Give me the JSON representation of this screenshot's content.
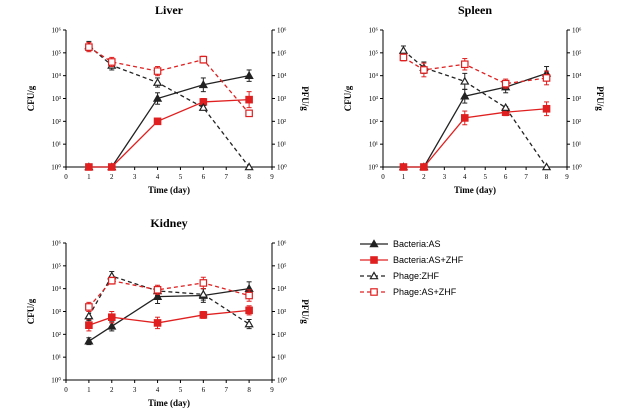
{
  "colors": {
    "bacteria_as": "#222222",
    "bacteria_as_zhf": "#e02020",
    "phage_zhf": "#222222",
    "phage_as_zhf": "#e02020"
  },
  "chart_data": [
    {
      "type": "line",
      "title": "Liver",
      "xlabel": "Time (day)",
      "ylabel": "CFU/g",
      "y2label": "PFU/g",
      "xlim": [
        0,
        9
      ],
      "ylim_log10": [
        0,
        6
      ],
      "x_ticks": [
        "0",
        "1",
        "2",
        "3",
        "4",
        "5",
        "6",
        "7",
        "8",
        "9"
      ],
      "y_ticks": [
        "10⁰",
        "10¹",
        "10²",
        "10³",
        "10⁴",
        "10⁵",
        "10⁶"
      ],
      "series": [
        {
          "name": "Bacteria:AS",
          "style": "bac_as",
          "x": [
            1,
            2,
            4,
            6,
            8
          ],
          "y_log10": [
            0,
            0,
            3.0,
            3.6,
            4.0
          ],
          "err": [
            0,
            0,
            0.25,
            0.3,
            0.25
          ]
        },
        {
          "name": "Bacteria:AS+ZHF",
          "style": "bac_zhf",
          "x": [
            1,
            2,
            4,
            6,
            8
          ],
          "y_log10": [
            0,
            0,
            2.0,
            2.85,
            2.95
          ],
          "err": [
            0,
            0,
            0.05,
            0.15,
            0.35
          ]
        },
        {
          "name": "Phage:ZHF",
          "style": "ph_zhf",
          "x": [
            1,
            2,
            4,
            6,
            8
          ],
          "y_log10": [
            5.3,
            4.45,
            3.7,
            2.6,
            0
          ],
          "err": [
            0.2,
            0.2,
            0.2,
            0.1,
            0
          ]
        },
        {
          "name": "Phage:AS+ZHF",
          "style": "ph_ashzf",
          "x": [
            1,
            2,
            4,
            6,
            8
          ],
          "y_log10": [
            5.25,
            4.6,
            4.2,
            4.7,
            2.35
          ],
          "err": [
            0.2,
            0.2,
            0.2,
            0.15,
            0.05
          ]
        }
      ]
    },
    {
      "type": "line",
      "title": "Spleen",
      "xlabel": "Time (day)",
      "ylabel": "CFU/g",
      "y2label": "PFU/g",
      "xlim": [
        0,
        9
      ],
      "ylim_log10": [
        0,
        6
      ],
      "x_ticks": [
        "0",
        "1",
        "2",
        "3",
        "4",
        "5",
        "6",
        "7",
        "8",
        "9"
      ],
      "y_ticks": [
        "10⁰",
        "10¹",
        "10²",
        "10³",
        "10⁴",
        "10⁵",
        "10⁶"
      ],
      "series": [
        {
          "name": "Bacteria:AS",
          "style": "bac_as",
          "x": [
            1,
            2,
            4,
            6,
            8
          ],
          "y_log10": [
            0,
            0,
            3.1,
            3.5,
            4.1
          ],
          "err": [
            0,
            0,
            0.3,
            0.25,
            0.3
          ]
        },
        {
          "name": "Bacteria:AS+ZHF",
          "style": "bac_zhf",
          "x": [
            1,
            2,
            4,
            6,
            8
          ],
          "y_log10": [
            0,
            0,
            2.15,
            2.4,
            2.55
          ],
          "err": [
            0,
            0,
            0.3,
            0.15,
            0.3
          ]
        },
        {
          "name": "Phage:ZHF",
          "style": "ph_zhf",
          "x": [
            1,
            2,
            4,
            6,
            8
          ],
          "y_log10": [
            5.1,
            4.35,
            3.75,
            2.6,
            0
          ],
          "err": [
            0.2,
            0.25,
            0.35,
            0.05,
            0
          ]
        },
        {
          "name": "Phage:AS+ZHF",
          "style": "ph_ashzf",
          "x": [
            1,
            2,
            4,
            6,
            8
          ],
          "y_log10": [
            4.8,
            4.25,
            4.5,
            3.65,
            3.9
          ],
          "err": [
            0.15,
            0.3,
            0.25,
            0.2,
            0.3
          ]
        }
      ]
    },
    {
      "type": "line",
      "title": "Kidney",
      "xlabel": "Time (day)",
      "ylabel": "CFU/g",
      "y2label": "PFU/g",
      "xlim": [
        0,
        9
      ],
      "ylim_log10": [
        0,
        6
      ],
      "x_ticks": [
        "0",
        "1",
        "2",
        "3",
        "4",
        "5",
        "6",
        "7",
        "8",
        "9"
      ],
      "y_ticks": [
        "10⁰",
        "10¹",
        "10²",
        "10³",
        "10⁴",
        "10⁵",
        "10⁶"
      ],
      "series": [
        {
          "name": "Bacteria:AS",
          "style": "bac_as",
          "x": [
            1,
            2,
            4,
            6,
            8
          ],
          "y_log10": [
            1.7,
            2.35,
            3.65,
            3.7,
            4.0
          ],
          "err": [
            0.15,
            0.2,
            0.3,
            0.3,
            0.3
          ]
        },
        {
          "name": "Bacteria:AS+ZHF",
          "style": "bac_zhf",
          "x": [
            1,
            2,
            4,
            6,
            8
          ],
          "y_log10": [
            2.4,
            2.75,
            2.5,
            2.85,
            3.05
          ],
          "err": [
            0.25,
            0.25,
            0.25,
            0.15,
            0.2
          ]
        },
        {
          "name": "Phage:ZHF",
          "style": "ph_zhf",
          "x": [
            1,
            2,
            4,
            6,
            8
          ],
          "y_log10": [
            2.8,
            4.55,
            3.9,
            3.75,
            2.45
          ],
          "err": [
            0.2,
            0.2,
            0.2,
            0.25,
            0.2
          ]
        },
        {
          "name": "Phage:AS+ZHF",
          "style": "ph_ashzf",
          "x": [
            1,
            2,
            4,
            6,
            8
          ],
          "y_log10": [
            3.2,
            4.35,
            3.95,
            4.25,
            3.7
          ],
          "err": [
            0.2,
            0.15,
            0.2,
            0.25,
            0.25
          ]
        }
      ]
    }
  ],
  "legend": [
    {
      "label": "Bacteria:AS",
      "style": "bac_as"
    },
    {
      "label": "Bacteria:AS+ZHF",
      "style": "bac_zhf"
    },
    {
      "label": "Phage:ZHF",
      "style": "ph_zhf"
    },
    {
      "label": "Phage:AS+ZHF",
      "style": "ph_ashzf"
    }
  ]
}
